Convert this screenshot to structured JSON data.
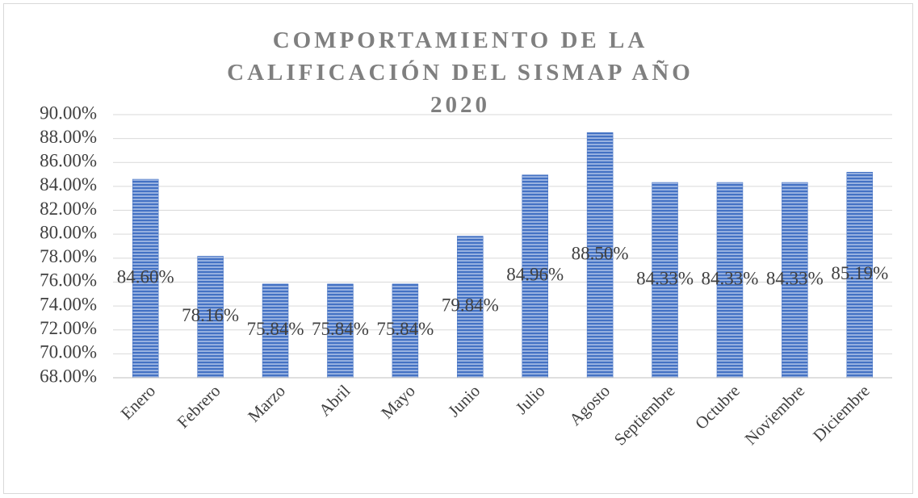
{
  "chart_data": {
    "type": "bar",
    "title": "COMPORTAMIENTO DE LA CALIFICACIÓN DEL SISMAP AÑO 2020",
    "categories": [
      "Enero",
      "Febrero",
      "Marzo",
      "Abril",
      "Mayo",
      "Junio",
      "Julio",
      "Agosto",
      "Septiembre",
      "Octubre",
      "Noviembre",
      "Diciembre"
    ],
    "values": [
      84.6,
      78.16,
      75.84,
      75.84,
      75.84,
      79.84,
      84.96,
      88.5,
      84.33,
      84.33,
      84.33,
      85.19
    ],
    "value_labels": [
      "84.60%",
      "78.16%",
      "75.84%",
      "75.84%",
      "75.84%",
      "79.84%",
      "84.96%",
      "88.50%",
      "84.33%",
      "84.33%",
      "84.33%",
      "85.19%"
    ],
    "color": "#4472c4",
    "ylim": [
      68,
      90
    ],
    "yticks": [
      {
        "value": 68,
        "label": "68.00%"
      },
      {
        "value": 70,
        "label": "70.00%"
      },
      {
        "value": 72,
        "label": "72.00%"
      },
      {
        "value": 74,
        "label": "74.00%"
      },
      {
        "value": 76,
        "label": "76.00%"
      },
      {
        "value": 78,
        "label": "78.00%"
      },
      {
        "value": 80,
        "label": "80.00%"
      },
      {
        "value": 82,
        "label": "82.00%"
      },
      {
        "value": 84,
        "label": "84.00%"
      },
      {
        "value": 86,
        "label": "86.00%"
      },
      {
        "value": 88,
        "label": "88.00%"
      },
      {
        "value": 90,
        "label": "90.00%"
      }
    ],
    "grid": true
  }
}
